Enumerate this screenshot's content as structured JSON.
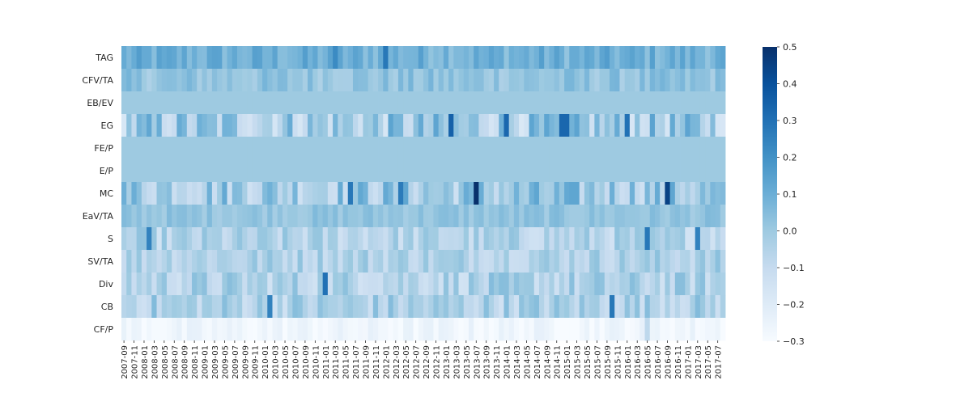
{
  "chart_data": {
    "type": "heatmap",
    "rows": [
      "TAG",
      "CFV/TA",
      "EB/EV",
      "EG",
      "FE/P",
      "E/P",
      "MC",
      "EaV/TA",
      "S",
      "SV/TA",
      "Div",
      "CB",
      "CF/P"
    ],
    "x_tick_labels": [
      "2007-09",
      "2007-11",
      "2008-01",
      "2008-03",
      "2008-05",
      "2008-07",
      "2008-09",
      "2008-11",
      "2009-01",
      "2009-03",
      "2009-05",
      "2009-07",
      "2009-09",
      "2009-11",
      "2010-01",
      "2010-03",
      "2010-05",
      "2010-07",
      "2010-09",
      "2010-11",
      "2011-01",
      "2011-03",
      "2011-05",
      "2011-07",
      "2011-09",
      "2011-11",
      "2012-01",
      "2012-03",
      "2012-05",
      "2012-07",
      "2012-09",
      "2012-11",
      "2013-01",
      "2013-03",
      "2013-05",
      "2013-07",
      "2013-09",
      "2013-11",
      "2014-01",
      "2014-03",
      "2014-05",
      "2014-07",
      "2014-09",
      "2014-11",
      "2015-01",
      "2015-03",
      "2015-05",
      "2015-07",
      "2015-09",
      "2015-11",
      "2016-01",
      "2016-03",
      "2016-05",
      "2016-07",
      "2016-09",
      "2016-11",
      "2017-01",
      "2017-03",
      "2017-05",
      "2017-07"
    ],
    "columns_count": 120,
    "colorbar": {
      "min": -0.3,
      "max": 0.5,
      "ticks": [
        "0.5",
        "0.4",
        "0.3",
        "0.2",
        "0.1",
        "0.0",
        "−0.1",
        "−0.2",
        "−0.3"
      ]
    },
    "colormap": [
      "#f7fbff",
      "#deebf7",
      "#c6dbef",
      "#9ecae1",
      "#6baed6",
      "#4292c6",
      "#2171b5",
      "#08519c",
      "#08306b"
    ],
    "constant_rows": {
      "EB/EV": 0.0,
      "FE/P": 0.0,
      "E/P": 0.0
    },
    "row_profiles": {
      "TAG": {
        "base": 0.09,
        "spread": 0.07
      },
      "CFV/TA": {
        "base": 0.02,
        "spread": 0.06
      },
      "EG": {
        "base": -0.02,
        "spread": 0.16
      },
      "MC": {
        "base": 0.0,
        "spread": 0.14
      },
      "EaV/TA": {
        "base": 0.02,
        "spread": 0.04
      },
      "S": {
        "base": -0.06,
        "spread": 0.09
      },
      "SV/TA": {
        "base": -0.04,
        "spread": 0.08
      },
      "Div": {
        "base": -0.05,
        "spread": 0.1
      },
      "CB": {
        "base": -0.04,
        "spread": 0.1
      },
      "CF/P": {
        "base": -0.27,
        "spread": 0.04
      }
    },
    "highlights": [
      {
        "row": "TAG",
        "col": 52,
        "value": 0.28
      },
      {
        "row": "TAG",
        "col": 42,
        "value": 0.22
      },
      {
        "row": "EG",
        "col": 65,
        "value": 0.35
      },
      {
        "row": "EG",
        "col": 76,
        "value": 0.33
      },
      {
        "row": "EG",
        "col": 87,
        "value": 0.33
      },
      {
        "row": "EG",
        "col": 88,
        "value": 0.33
      },
      {
        "row": "EG",
        "col": 100,
        "value": 0.3
      },
      {
        "row": "MC",
        "col": 70,
        "value": 0.5
      },
      {
        "row": "MC",
        "col": 108,
        "value": 0.45
      },
      {
        "row": "MC",
        "col": 45,
        "value": 0.28
      },
      {
        "row": "MC",
        "col": 55,
        "value": 0.27
      },
      {
        "row": "Div",
        "col": 40,
        "value": 0.3
      },
      {
        "row": "S",
        "col": 5,
        "value": 0.25
      },
      {
        "row": "S",
        "col": 104,
        "value": 0.28
      },
      {
        "row": "S",
        "col": 114,
        "value": 0.25
      },
      {
        "row": "CB",
        "col": 29,
        "value": 0.25
      },
      {
        "row": "CB",
        "col": 97,
        "value": 0.28
      },
      {
        "row": "CF/P",
        "col": 104,
        "value": -0.08
      }
    ]
  }
}
